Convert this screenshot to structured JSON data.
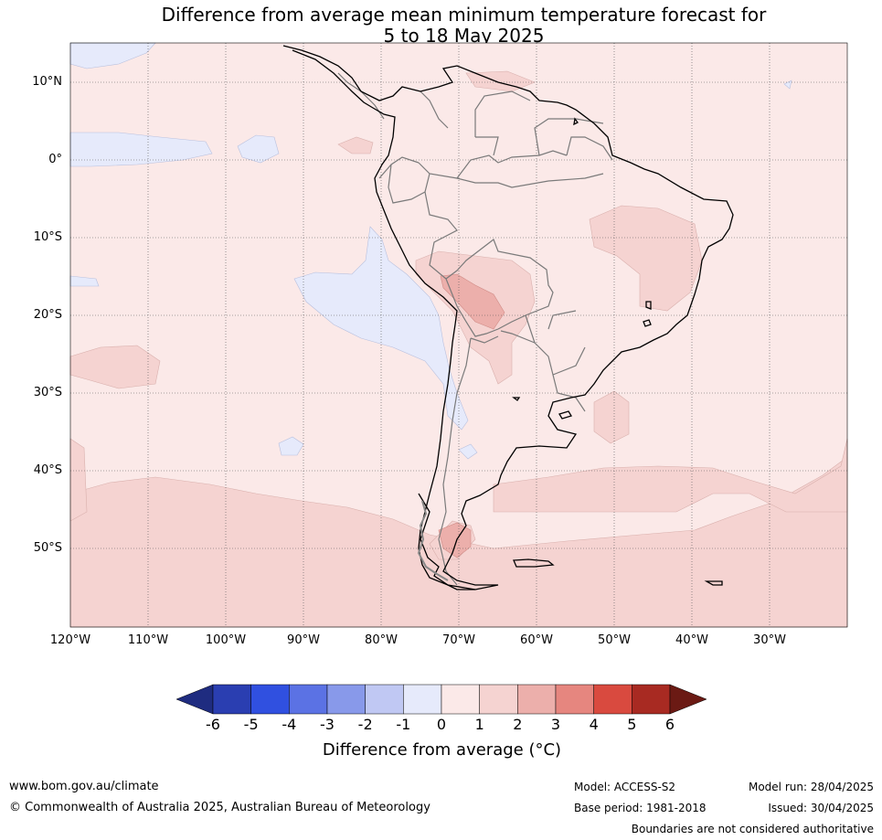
{
  "title": {
    "line1": "Difference from average mean minimum temperature forecast for",
    "line2": "5 to 18 May 2025"
  },
  "map": {
    "region": "South America",
    "lat_labels": [
      "10°N",
      "0°",
      "10°S",
      "20°S",
      "30°S",
      "40°S",
      "50°S"
    ],
    "lon_labels": [
      "120°W",
      "110°W",
      "100°W",
      "90°W",
      "80°W",
      "70°W",
      "60°W",
      "50°W",
      "40°W",
      "30°W"
    ],
    "gridlines": "dotted",
    "background_class_color": "#fbe9e8"
  },
  "colorbar": {
    "label": "Difference from average (°C)",
    "tick_labels": [
      "-6",
      "-5",
      "-4",
      "-3",
      "-2",
      "-1",
      "0",
      "1",
      "2",
      "3",
      "4",
      "5",
      "6"
    ],
    "colors": [
      "#1f2c80",
      "#2a3eb1",
      "#3050e0",
      "#5b72e4",
      "#8899ea",
      "#c0c8f3",
      "#e6eafb",
      "#fbe9e8",
      "#f5d3d1",
      "#ecafab",
      "#e6867f",
      "#d94a3f",
      "#a82a22",
      "#6b1a14"
    ],
    "extend": "both"
  },
  "footer": {
    "website": "www.bom.gov.au/climate",
    "copyright": "© Commonwealth of Australia 2025, Australian Bureau of Meteorology",
    "model": "Model: ACCESS-S2",
    "base_period": "Base period: 1981-2018",
    "model_run": "Model run: 28/04/2025",
    "issued": "Issued: 30/04/2025",
    "disclaimer": "Boundaries are not considered authoritative"
  }
}
